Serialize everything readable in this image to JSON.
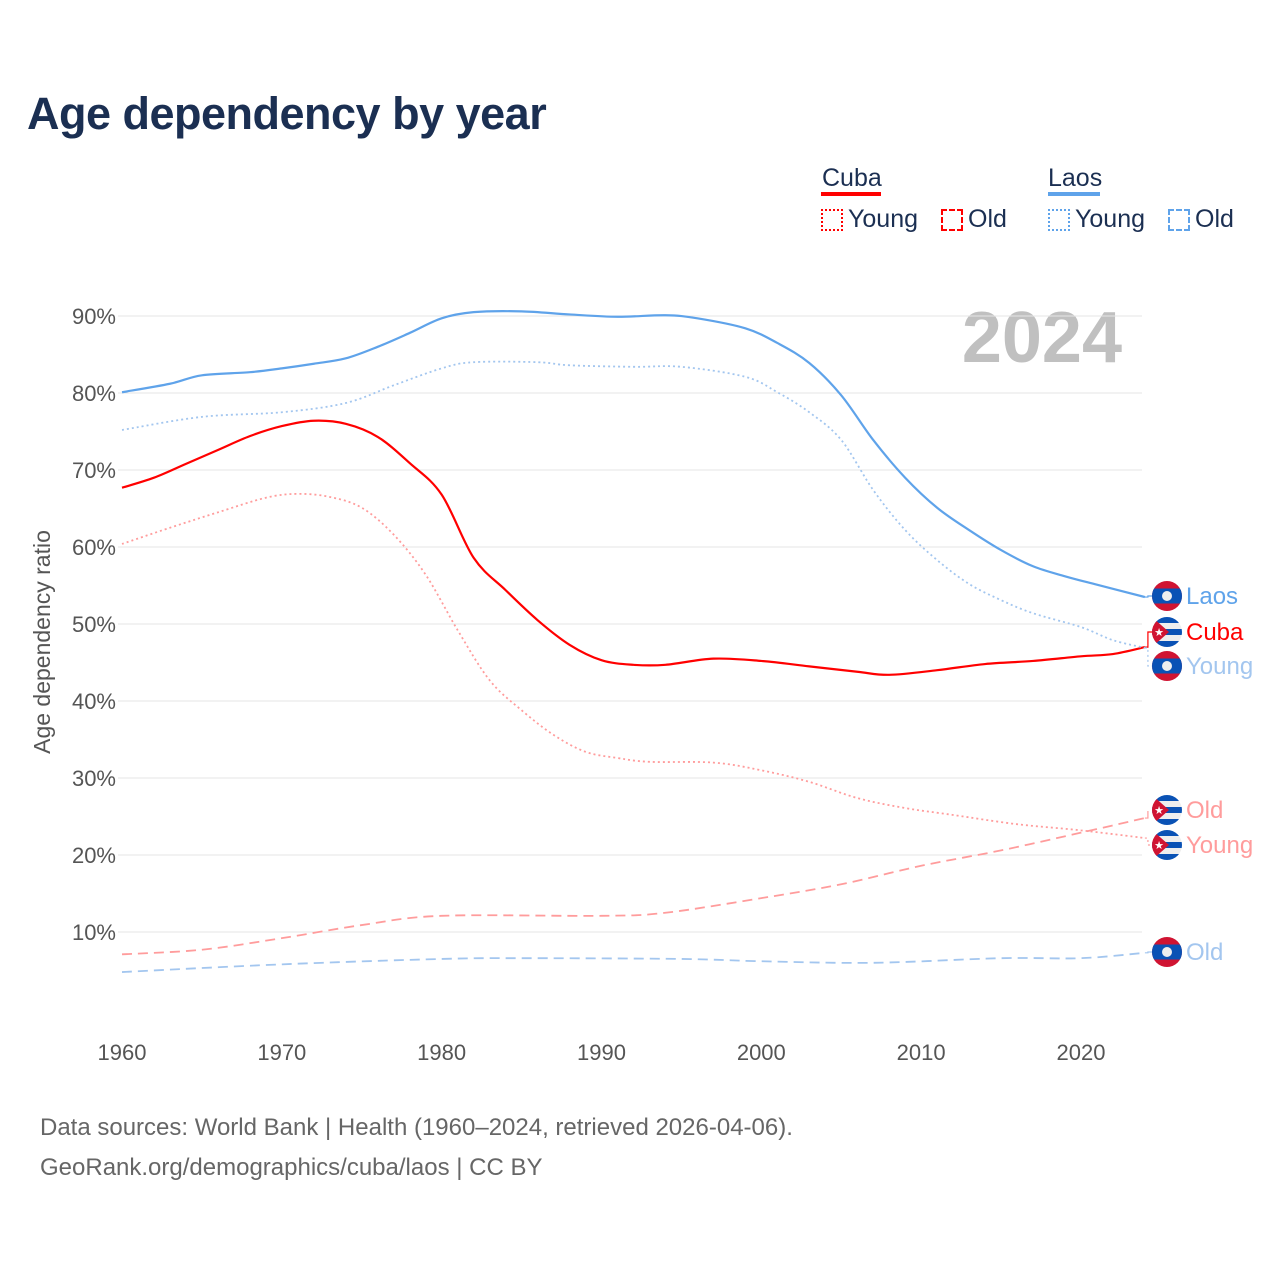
{
  "title": "Age dependency by year",
  "legend": {
    "groups": [
      {
        "country": "Cuba",
        "color": "#ff0000",
        "young": "Young",
        "old": "Old"
      },
      {
        "country": "Laos",
        "color": "#5fa3ea",
        "young": "Young",
        "old": "Old"
      }
    ]
  },
  "source": {
    "line1": "Data sources: World Bank | Health (1960–2024, retrieved 2026-04-06).",
    "line2": "GeoRank.org/demographics/cuba/laos | CC BY"
  },
  "chart_data": {
    "type": "line",
    "title": "Age dependency by year",
    "xlabel": "",
    "ylabel": "Age dependency ratio",
    "year_watermark": "2024",
    "xlim": [
      1960,
      2024
    ],
    "ylim": [
      0,
      90
    ],
    "x_ticks": [
      "1960",
      "1970",
      "1980",
      "1990",
      "2000",
      "2010",
      "2020"
    ],
    "y_ticks": [
      "10%",
      "20%",
      "30%",
      "40%",
      "50%",
      "60%",
      "70%",
      "80%",
      "90%"
    ],
    "grid": true,
    "series": [
      {
        "name": "Laos",
        "label": "Laos",
        "country": "Laos",
        "kind": "total",
        "color": "#5fa3ea",
        "dash": "",
        "points": [
          [
            1960,
            80.1
          ],
          [
            1963,
            81.2
          ],
          [
            1965,
            82.3
          ],
          [
            1968,
            82.7
          ],
          [
            1970,
            83.2
          ],
          [
            1972,
            83.8
          ],
          [
            1974,
            84.5
          ],
          [
            1976,
            86.0
          ],
          [
            1978,
            87.8
          ],
          [
            1980,
            89.7
          ],
          [
            1982,
            90.5
          ],
          [
            1985,
            90.6
          ],
          [
            1988,
            90.2
          ],
          [
            1991,
            89.9
          ],
          [
            1994,
            90.1
          ],
          [
            1996,
            89.7
          ],
          [
            1999,
            88.4
          ],
          [
            2001,
            86.5
          ],
          [
            2003,
            83.9
          ],
          [
            2005,
            79.7
          ],
          [
            2007,
            73.9
          ],
          [
            2009,
            69.0
          ],
          [
            2011,
            65.1
          ],
          [
            2013,
            62.2
          ],
          [
            2015,
            59.6
          ],
          [
            2017,
            57.5
          ],
          [
            2019,
            56.2
          ],
          [
            2021,
            55.1
          ],
          [
            2024,
            53.5
          ]
        ]
      },
      {
        "name": "Cuba",
        "label": "Cuba",
        "country": "Cuba",
        "kind": "total",
        "color": "#ff0000",
        "dash": "",
        "points": [
          [
            1960,
            67.7
          ],
          [
            1962,
            69.0
          ],
          [
            1964,
            70.8
          ],
          [
            1966,
            72.6
          ],
          [
            1968,
            74.4
          ],
          [
            1970,
            75.7
          ],
          [
            1972,
            76.4
          ],
          [
            1974,
            76.0
          ],
          [
            1976,
            74.3
          ],
          [
            1978,
            70.9
          ],
          [
            1980,
            66.8
          ],
          [
            1982,
            58.6
          ],
          [
            1984,
            54.4
          ],
          [
            1986,
            50.5
          ],
          [
            1988,
            47.3
          ],
          [
            1990,
            45.3
          ],
          [
            1992,
            44.7
          ],
          [
            1994,
            44.7
          ],
          [
            1997,
            45.5
          ],
          [
            2000,
            45.2
          ],
          [
            2003,
            44.5
          ],
          [
            2006,
            43.8
          ],
          [
            2008,
            43.4
          ],
          [
            2011,
            44.0
          ],
          [
            2014,
            44.8
          ],
          [
            2017,
            45.2
          ],
          [
            2020,
            45.8
          ],
          [
            2022,
            46.1
          ],
          [
            2024,
            47.0
          ]
        ]
      },
      {
        "name": "Laos Young",
        "label": "Young",
        "country": "Laos",
        "kind": "young",
        "color": "#a3c6ef",
        "dash": "2 3",
        "points": [
          [
            1960,
            75.2
          ],
          [
            1965,
            76.9
          ],
          [
            1970,
            77.5
          ],
          [
            1974,
            78.7
          ],
          [
            1977,
            81.0
          ],
          [
            1980,
            83.2
          ],
          [
            1982,
            84.0
          ],
          [
            1986,
            84.0
          ],
          [
            1988,
            83.6
          ],
          [
            1992,
            83.4
          ],
          [
            1995,
            83.4
          ],
          [
            1999,
            82.1
          ],
          [
            2001,
            80.1
          ],
          [
            2003,
            77.5
          ],
          [
            2005,
            73.9
          ],
          [
            2007,
            67.4
          ],
          [
            2009,
            62.2
          ],
          [
            2011,
            58.3
          ],
          [
            2013,
            55.2
          ],
          [
            2015,
            53.1
          ],
          [
            2017,
            51.4
          ],
          [
            2020,
            49.6
          ],
          [
            2022,
            47.9
          ],
          [
            2024,
            46.9
          ]
        ]
      },
      {
        "name": "Cuba Old",
        "label": "Old",
        "country": "Cuba",
        "kind": "old",
        "color": "#ff9c9c",
        "dash": "10 6",
        "points": [
          [
            1960,
            7.1
          ],
          [
            1965,
            7.7
          ],
          [
            1970,
            9.2
          ],
          [
            1975,
            10.9
          ],
          [
            1980,
            12.1
          ],
          [
            1990,
            12.1
          ],
          [
            1994,
            12.5
          ],
          [
            2000,
            14.4
          ],
          [
            2005,
            16.2
          ],
          [
            2010,
            18.6
          ],
          [
            2015,
            20.6
          ],
          [
            2020,
            22.9
          ],
          [
            2024,
            24.8
          ]
        ]
      },
      {
        "name": "Cuba Young",
        "label": "Young",
        "country": "Cuba",
        "kind": "young",
        "color": "#ff9c9c",
        "dash": "2 3",
        "points": [
          [
            1960,
            60.4
          ],
          [
            1963,
            62.5
          ],
          [
            1966,
            64.5
          ],
          [
            1969,
            66.4
          ],
          [
            1971,
            66.9
          ],
          [
            1973,
            66.5
          ],
          [
            1975,
            65.1
          ],
          [
            1977,
            61.6
          ],
          [
            1979,
            56.4
          ],
          [
            1981,
            49.2
          ],
          [
            1983,
            42.7
          ],
          [
            1985,
            38.8
          ],
          [
            1987,
            35.6
          ],
          [
            1989,
            33.4
          ],
          [
            1991,
            32.6
          ],
          [
            1993,
            32.1
          ],
          [
            1997,
            32.0
          ],
          [
            2000,
            31.0
          ],
          [
            2003,
            29.5
          ],
          [
            2006,
            27.4
          ],
          [
            2009,
            26.1
          ],
          [
            2012,
            25.2
          ],
          [
            2016,
            24.0
          ],
          [
            2020,
            23.2
          ],
          [
            2024,
            22.2
          ]
        ]
      },
      {
        "name": "Laos Old",
        "label": "Old",
        "country": "Laos",
        "kind": "old",
        "color": "#a3c6ef",
        "dash": "10 6",
        "points": [
          [
            1960,
            4.8
          ],
          [
            1970,
            5.8
          ],
          [
            1980,
            6.5
          ],
          [
            1985,
            6.6
          ],
          [
            1995,
            6.5
          ],
          [
            2000,
            6.2
          ],
          [
            2007,
            6.0
          ],
          [
            2015,
            6.6
          ],
          [
            2020,
            6.6
          ],
          [
            2024,
            7.3
          ]
        ]
      }
    ]
  }
}
